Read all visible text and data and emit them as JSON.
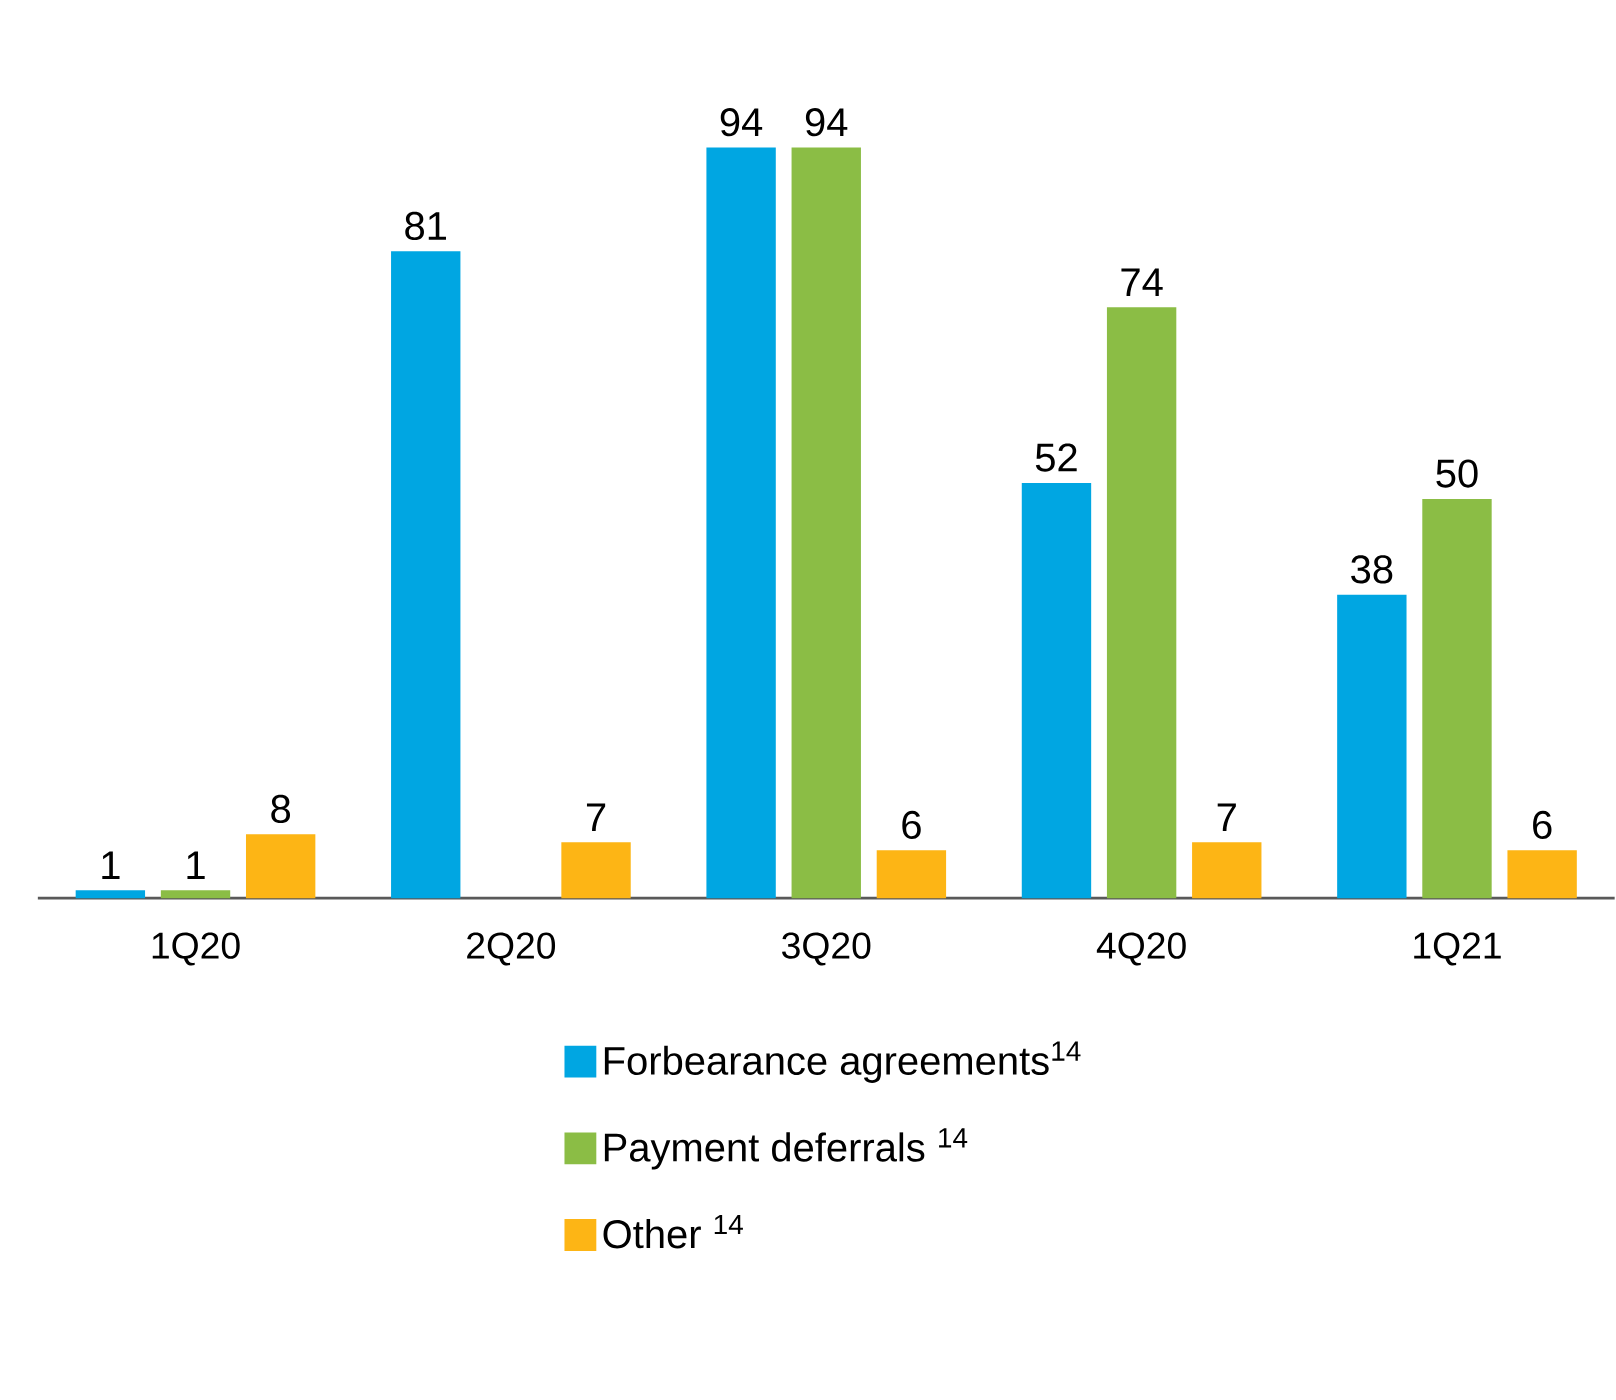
{
  "chart_data": {
    "type": "bar",
    "categories": [
      "1Q20",
      "2Q20",
      "3Q20",
      "4Q20",
      "1Q21"
    ],
    "series": [
      {
        "name": "Forbearance agreements$^{14}$",
        "color": "#00a6e2",
        "values": [
          1,
          81,
          94,
          52,
          38
        ]
      },
      {
        "name": "Payment deferrals $^{14}$",
        "color": "#8bbd45",
        "values": [
          1,
          null,
          94,
          74,
          50
        ]
      },
      {
        "name": "Other $^{14}$",
        "color": "#fdb515",
        "values": [
          8,
          7,
          6,
          7,
          6
        ]
      }
    ],
    "data_labels": true,
    "legend": "bottom"
  }
}
